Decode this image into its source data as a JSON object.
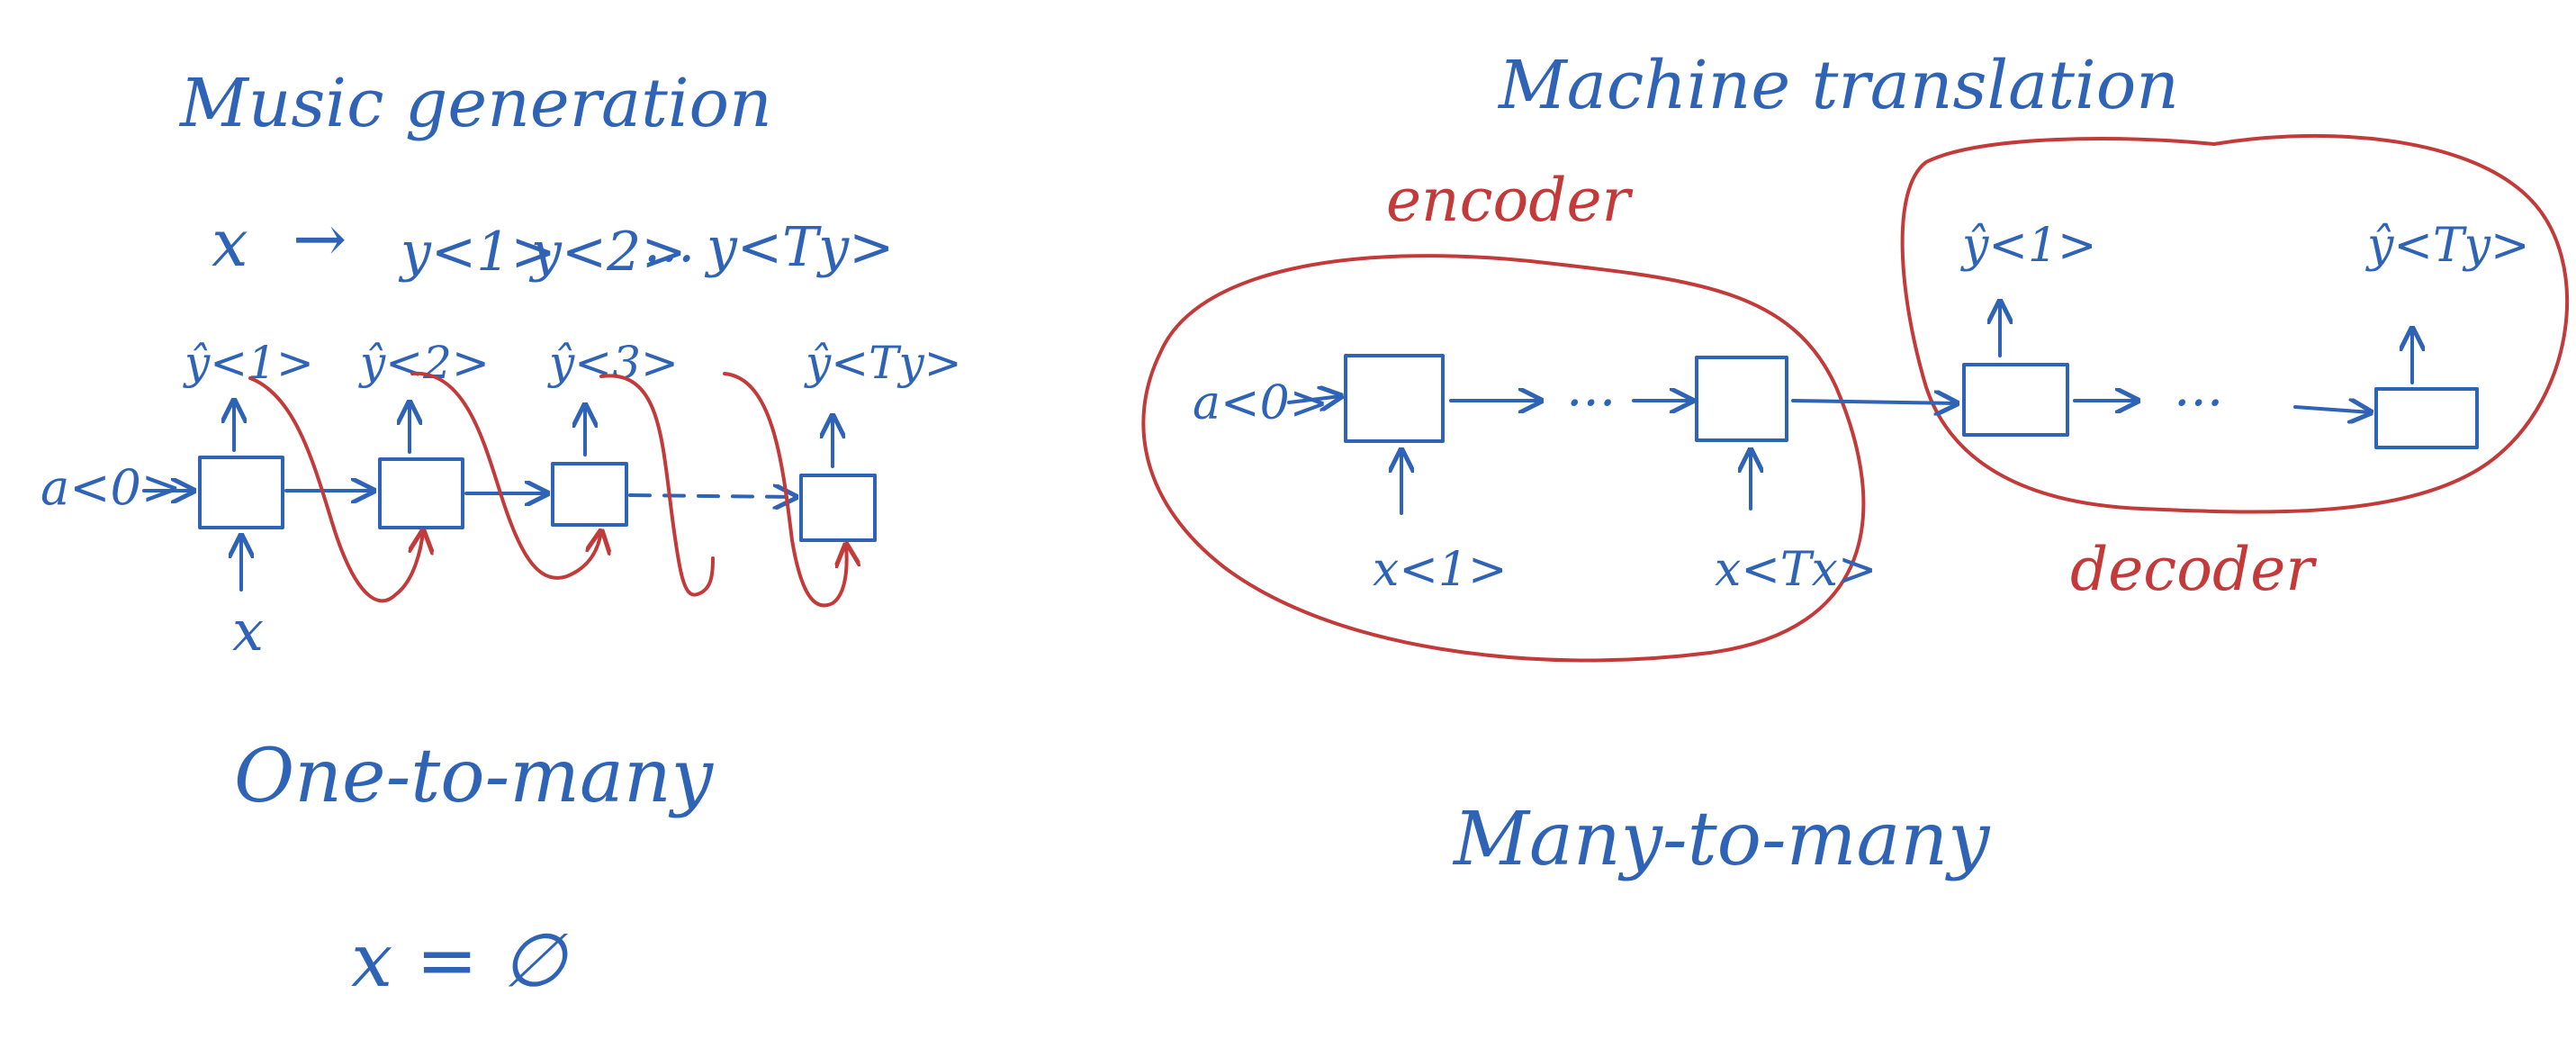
{
  "colors": {
    "ink": "#2f63b5",
    "red_ink": "#c23a3a",
    "background": "#ffffff"
  },
  "left": {
    "title": "Music generation",
    "sequence": {
      "x": "x",
      "arrow": "→",
      "y1": "y<1>",
      "y2": "y<2>",
      "dots": "...",
      "yTy": "y<Ty>"
    },
    "a0": "a<0>",
    "x_input": "x",
    "outputs": [
      "ŷ<1>",
      "ŷ<2>",
      "ŷ<3>",
      "ŷ<Ty>"
    ],
    "caption": "One-to-many",
    "note": "x = ∅"
  },
  "right": {
    "title": "Machine translation",
    "encoder_label": "encoder",
    "decoder_label": "decoder",
    "a0": "a<0>",
    "inputs": [
      "x<1>",
      "x<Tx>"
    ],
    "outputs": [
      "ŷ<1>",
      "ŷ<Ty>"
    ],
    "dots": "...",
    "caption": "Many-to-many"
  }
}
